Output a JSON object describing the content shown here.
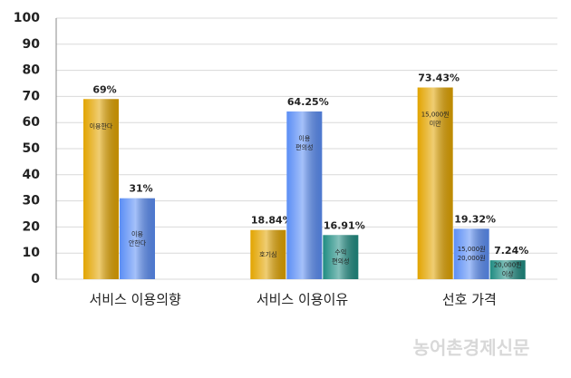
{
  "chart_data": {
    "type": "bar",
    "categories": [
      "서비스 이용의향",
      "서비스 이용이유",
      "선호 가격"
    ],
    "series": [
      {
        "color": "#e2a400",
        "values": [
          69,
          18.84,
          73.43
        ],
        "value_labels": [
          "69%",
          "18.84%",
          "73.43%"
        ],
        "bar_labels": [
          [
            "이용한다"
          ],
          [
            "호기심"
          ],
          [
            "15,000원",
            "미만"
          ]
        ]
      },
      {
        "color": "#5b8ef5",
        "values": [
          31,
          64.25,
          19.32
        ],
        "value_labels": [
          "31%",
          "64.25%",
          "19.32%"
        ],
        "bar_labels": [
          [
            "이용",
            "안한다"
          ],
          [
            "이용",
            "편의성"
          ],
          [
            "15,000원",
            "20,000원"
          ]
        ]
      },
      {
        "color": "#1f8c82",
        "values": [
          null,
          16.91,
          7.24
        ],
        "value_labels": [
          null,
          "16.91%",
          "7.24%"
        ],
        "bar_labels": [
          null,
          [
            "수익",
            "편의성"
          ],
          [
            "20,000원",
            "이상"
          ]
        ]
      }
    ],
    "ylim": [
      0,
      100
    ],
    "yticks": [
      0,
      10,
      20,
      30,
      40,
      50,
      60,
      70,
      80,
      90,
      100
    ],
    "grid": true,
    "watermark": "농어촌경제신문"
  }
}
